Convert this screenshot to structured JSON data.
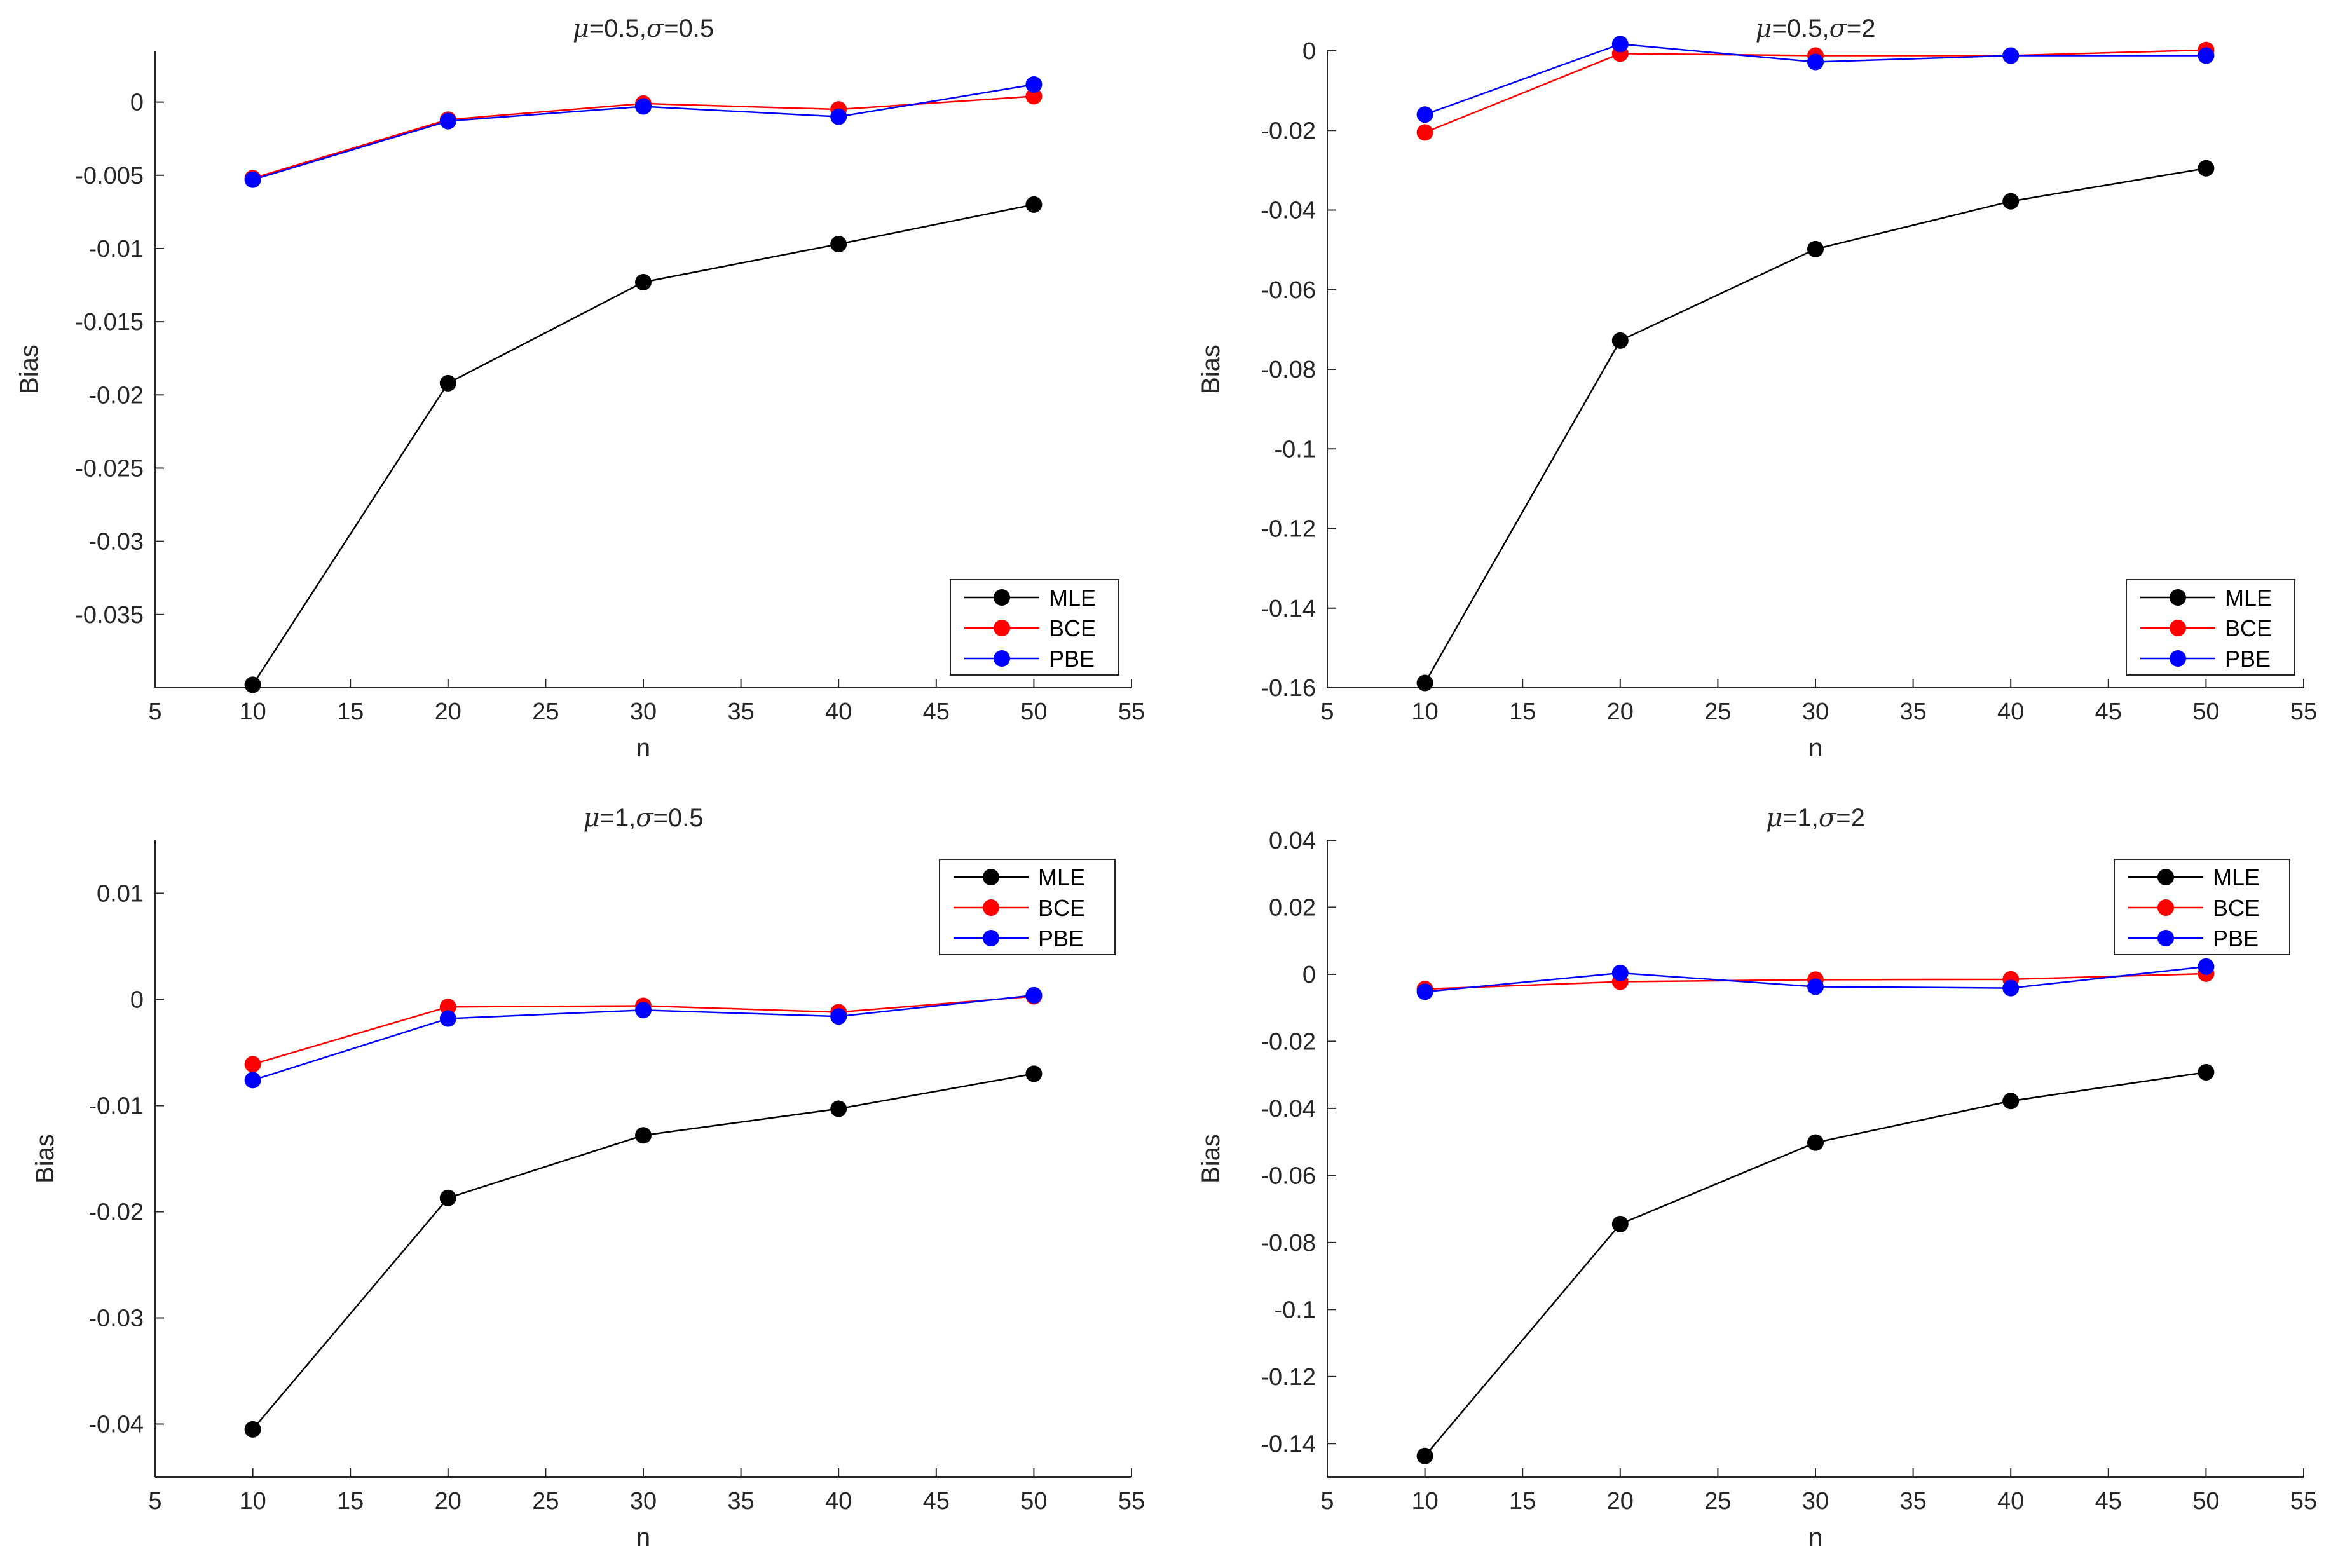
{
  "chart_data": [
    {
      "type": "line",
      "title": {
        "mu_sym": "μ",
        "mu_val": "=0.5,",
        "sigma_sym": "σ",
        "sigma_val": "=0.5"
      },
      "xlabel": "n",
      "ylabel": "Bias",
      "xlim": [
        5,
        55
      ],
      "ylim": [
        -0.04,
        0.0035
      ],
      "xticks": [
        "5",
        "10",
        "15",
        "20",
        "25",
        "30",
        "35",
        "40",
        "45",
        "50",
        "55"
      ],
      "yticks": [
        "0",
        "-0.005",
        "-0.01",
        "-0.015",
        "-0.02",
        "-0.025",
        "-0.03",
        "-0.035"
      ],
      "legend_position": "bottom-right",
      "x": [
        10,
        20,
        30,
        40,
        50
      ],
      "series": [
        {
          "name": "MLE",
          "color": "#000000",
          "values": [
            -0.0398,
            -0.0192,
            -0.0123,
            -0.0097,
            -0.007
          ]
        },
        {
          "name": "BCE",
          "color": "#ff0000",
          "values": [
            -0.0052,
            -0.0012,
            -0.0001,
            -0.0005,
            0.0004
          ]
        },
        {
          "name": "PBE",
          "color": "#0000ff",
          "values": [
            -0.0053,
            -0.0013,
            -0.0003,
            -0.001,
            0.0012
          ]
        }
      ]
    },
    {
      "type": "line",
      "title": {
        "mu_sym": "μ",
        "mu_val": "=0.5,",
        "sigma_sym": "σ",
        "sigma_val": "=2"
      },
      "xlabel": "n",
      "ylabel": "Bias",
      "xlim": [
        5,
        55
      ],
      "ylim": [
        -0.16,
        0.0
      ],
      "xticks": [
        "5",
        "10",
        "15",
        "20",
        "25",
        "30",
        "35",
        "40",
        "45",
        "50",
        "55"
      ],
      "yticks": [
        "0",
        "-0.02",
        "-0.04",
        "-0.06",
        "-0.08",
        "-0.1",
        "-0.12",
        "-0.14",
        "-0.16"
      ],
      "legend_position": "bottom-right",
      "x": [
        10,
        20,
        30,
        40,
        50
      ],
      "series": [
        {
          "name": "MLE",
          "color": "#000000",
          "values": [
            -0.1588,
            -0.0728,
            -0.0498,
            -0.0378,
            -0.0295
          ]
        },
        {
          "name": "BCE",
          "color": "#ff0000",
          "values": [
            -0.0205,
            -0.0007,
            -0.0012,
            -0.0012,
            0.0002
          ]
        },
        {
          "name": "PBE",
          "color": "#0000ff",
          "values": [
            -0.016,
            0.0017,
            -0.0028,
            -0.0012,
            -0.0012
          ]
        }
      ]
    },
    {
      "type": "line",
      "title": {
        "mu_sym": "μ",
        "mu_val": "=1,",
        "sigma_sym": "σ",
        "sigma_val": "=0.5"
      },
      "xlabel": "n",
      "ylabel": "Bias",
      "xlim": [
        5,
        55
      ],
      "ylim": [
        -0.045,
        0.015
      ],
      "xticks": [
        "5",
        "10",
        "15",
        "20",
        "25",
        "30",
        "35",
        "40",
        "45",
        "50",
        "55"
      ],
      "yticks": [
        "0.01",
        "0",
        "-0.01",
        "-0.02",
        "-0.03",
        "-0.04"
      ],
      "legend_position": "top-right",
      "x": [
        10,
        20,
        30,
        40,
        50
      ],
      "series": [
        {
          "name": "MLE",
          "color": "#000000",
          "values": [
            -0.0405,
            -0.0187,
            -0.0128,
            -0.0103,
            -0.007
          ]
        },
        {
          "name": "BCE",
          "color": "#ff0000",
          "values": [
            -0.0061,
            -0.0007,
            -0.0006,
            -0.0012,
            0.0003
          ]
        },
        {
          "name": "PBE",
          "color": "#0000ff",
          "values": [
            -0.0076,
            -0.0018,
            -0.001,
            -0.0016,
            0.0004
          ]
        }
      ]
    },
    {
      "type": "line",
      "title": {
        "mu_sym": "μ",
        "mu_val": "=1,",
        "sigma_sym": "σ",
        "sigma_val": "=2"
      },
      "xlabel": "n",
      "ylabel": "Bias",
      "xlim": [
        5,
        55
      ],
      "ylim": [
        -0.15,
        0.04
      ],
      "xticks": [
        "5",
        "10",
        "15",
        "20",
        "25",
        "30",
        "35",
        "40",
        "45",
        "50",
        "55"
      ],
      "yticks": [
        "0.04",
        "0.02",
        "0",
        "-0.02",
        "-0.04",
        "-0.06",
        "-0.08",
        "-0.1",
        "-0.12",
        "-0.14"
      ],
      "legend_position": "top-right",
      "x": [
        10,
        20,
        30,
        40,
        50
      ],
      "series": [
        {
          "name": "MLE",
          "color": "#000000",
          "values": [
            -0.1437,
            -0.0745,
            -0.0502,
            -0.0378,
            -0.0292
          ]
        },
        {
          "name": "BCE",
          "color": "#ff0000",
          "values": [
            -0.0044,
            -0.0022,
            -0.0016,
            -0.0015,
            0.0002
          ]
        },
        {
          "name": "PBE",
          "color": "#0000ff",
          "values": [
            -0.0052,
            0.0004,
            -0.0037,
            -0.0041,
            0.0023
          ]
        }
      ]
    }
  ]
}
